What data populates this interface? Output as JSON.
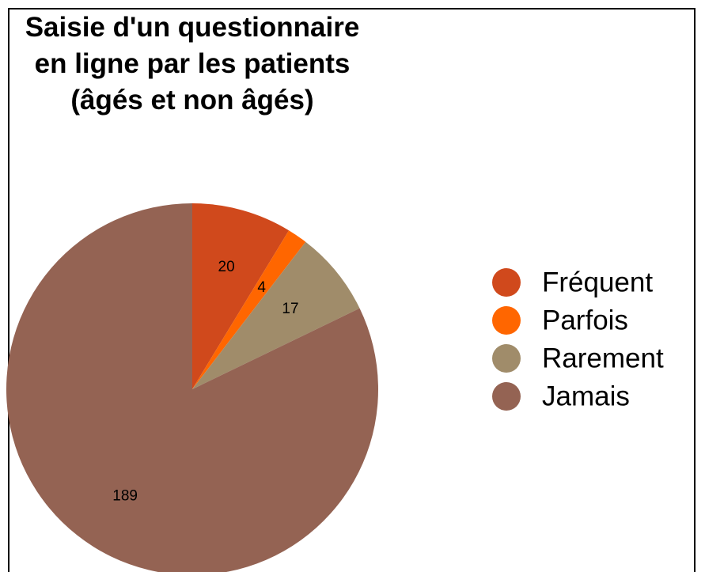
{
  "chart_data": {
    "type": "pie",
    "title": "Saisie  d'un questionnaire en ligne par les patients (âgés et non âgés)",
    "categories": [
      "Fréquent",
      "Parfois",
      "Rarement",
      "Jamais"
    ],
    "values": [
      20,
      4,
      17,
      189
    ],
    "colors": [
      "#d0491c",
      "#ff6600",
      "#a08c6a",
      "#946353"
    ],
    "legend": "right"
  }
}
